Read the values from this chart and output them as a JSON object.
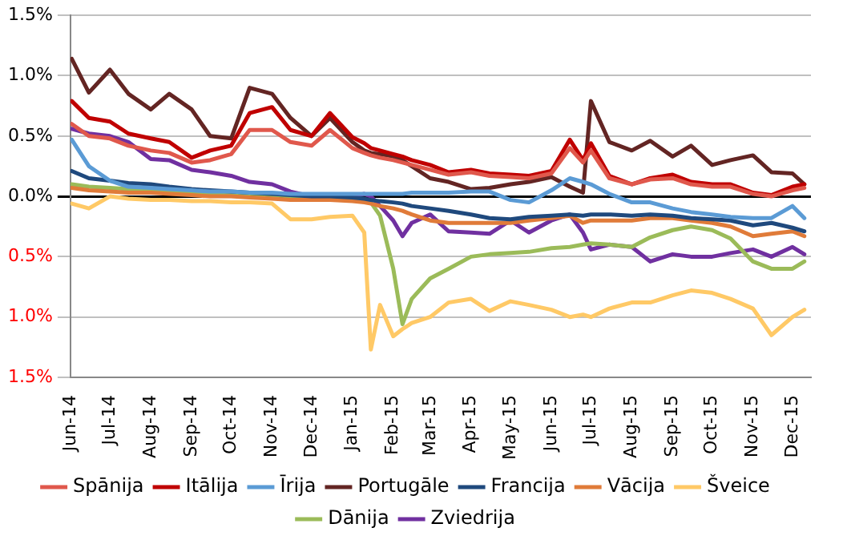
{
  "chart_data": {
    "type": "line",
    "x": [
      "2014-06-02",
      "2014-06-15",
      "2014-07-01",
      "2014-07-15",
      "2014-08-01",
      "2014-08-15",
      "2014-09-01",
      "2014-09-15",
      "2014-10-01",
      "2014-10-15",
      "2014-11-01",
      "2014-11-15",
      "2014-12-01",
      "2014-12-15",
      "2015-01-01",
      "2015-01-10",
      "2015-01-15",
      "2015-01-22",
      "2015-02-01",
      "2015-02-08",
      "2015-02-15",
      "2015-03-01",
      "2015-03-15",
      "2015-04-01",
      "2015-04-15",
      "2015-05-01",
      "2015-05-15",
      "2015-06-01",
      "2015-06-15",
      "2015-06-25",
      "2015-07-01",
      "2015-07-15",
      "2015-08-01",
      "2015-08-15",
      "2015-09-01",
      "2015-09-15",
      "2015-10-01",
      "2015-10-15",
      "2015-11-01",
      "2015-11-15",
      "2015-12-01",
      "2015-12-10"
    ],
    "series": [
      {
        "name": "Spānija",
        "color": "#e0584c",
        "values": [
          0.6,
          0.5,
          0.48,
          0.42,
          0.38,
          0.36,
          0.28,
          0.3,
          0.35,
          0.55,
          0.55,
          0.45,
          0.42,
          0.55,
          0.4,
          0.36,
          0.34,
          0.32,
          0.3,
          0.28,
          0.26,
          0.22,
          0.18,
          0.2,
          0.17,
          0.16,
          0.15,
          0.19,
          0.4,
          0.28,
          0.38,
          0.15,
          0.1,
          0.14,
          0.15,
          0.1,
          0.08,
          0.08,
          0.02,
          0.0,
          0.05,
          0.07
        ]
      },
      {
        "name": "Itālija",
        "color": "#c00000",
        "values": [
          0.79,
          0.65,
          0.62,
          0.52,
          0.48,
          0.45,
          0.32,
          0.38,
          0.42,
          0.69,
          0.74,
          0.55,
          0.5,
          0.69,
          0.49,
          0.44,
          0.4,
          0.38,
          0.35,
          0.33,
          0.3,
          0.26,
          0.2,
          0.22,
          0.19,
          0.18,
          0.17,
          0.21,
          0.47,
          0.3,
          0.44,
          0.17,
          0.1,
          0.15,
          0.18,
          0.12,
          0.1,
          0.1,
          0.03,
          0.01,
          0.08,
          0.1
        ]
      },
      {
        "name": "Īrija",
        "color": "#5b9bd5",
        "values": [
          0.47,
          0.25,
          0.13,
          0.08,
          0.07,
          0.06,
          0.05,
          0.04,
          0.04,
          0.03,
          0.03,
          0.02,
          0.02,
          0.02,
          0.02,
          0.02,
          0.02,
          0.02,
          0.02,
          0.02,
          0.03,
          0.03,
          0.03,
          0.04,
          0.04,
          -0.03,
          -0.05,
          0.05,
          0.15,
          0.12,
          0.1,
          0.02,
          -0.05,
          -0.05,
          -0.1,
          -0.13,
          -0.15,
          -0.17,
          -0.18,
          -0.18,
          -0.08,
          -0.18
        ]
      },
      {
        "name": "Portugāle",
        "color": "#632523",
        "values": [
          1.14,
          0.86,
          1.05,
          0.85,
          0.72,
          0.85,
          0.72,
          0.5,
          0.48,
          0.9,
          0.85,
          0.65,
          0.5,
          0.65,
          0.45,
          0.38,
          0.36,
          0.35,
          0.33,
          0.3,
          0.25,
          0.15,
          0.12,
          0.06,
          0.07,
          0.1,
          0.12,
          0.16,
          0.08,
          0.03,
          0.79,
          0.45,
          0.38,
          0.46,
          0.33,
          0.42,
          0.26,
          0.3,
          0.34,
          0.2,
          0.19,
          0.1
        ]
      },
      {
        "name": "Francija",
        "color": "#1f497d",
        "values": [
          0.21,
          0.15,
          0.13,
          0.11,
          0.1,
          0.08,
          0.06,
          0.05,
          0.04,
          0.03,
          0.02,
          0.01,
          0.0,
          0.0,
          -0.01,
          -0.02,
          -0.03,
          -0.04,
          -0.05,
          -0.06,
          -0.08,
          -0.1,
          -0.12,
          -0.15,
          -0.18,
          -0.19,
          -0.17,
          -0.16,
          -0.15,
          -0.16,
          -0.15,
          -0.15,
          -0.16,
          -0.15,
          -0.16,
          -0.18,
          -0.19,
          -0.2,
          -0.24,
          -0.22,
          -0.26,
          -0.29
        ]
      },
      {
        "name": "Vācija",
        "color": "#e07b39",
        "values": [
          0.07,
          0.05,
          0.04,
          0.03,
          0.03,
          0.02,
          0.01,
          0.0,
          0.0,
          -0.01,
          -0.02,
          -0.03,
          -0.03,
          -0.03,
          -0.04,
          -0.05,
          -0.06,
          -0.08,
          -0.1,
          -0.12,
          -0.15,
          -0.2,
          -0.22,
          -0.22,
          -0.22,
          -0.22,
          -0.2,
          -0.18,
          -0.16,
          -0.22,
          -0.2,
          -0.2,
          -0.2,
          -0.18,
          -0.18,
          -0.2,
          -0.22,
          -0.25,
          -0.33,
          -0.31,
          -0.29,
          -0.33
        ]
      },
      {
        "name": "Šveice",
        "color": "#ffc966",
        "values": [
          -0.06,
          -0.1,
          0.0,
          -0.02,
          -0.03,
          -0.03,
          -0.04,
          -0.04,
          -0.05,
          -0.05,
          -0.06,
          -0.19,
          -0.19,
          -0.17,
          -0.16,
          -0.3,
          -1.27,
          -0.9,
          -1.16,
          -1.1,
          -1.05,
          -1.0,
          -0.88,
          -0.85,
          -0.95,
          -0.87,
          -0.9,
          -0.94,
          -1.0,
          -0.98,
          -1.0,
          -0.93,
          -0.88,
          -0.88,
          -0.82,
          -0.78,
          -0.8,
          -0.85,
          -0.93,
          -1.15,
          -1.0,
          -0.94
        ]
      },
      {
        "name": "Dānija",
        "color": "#9bbb59",
        "values": [
          0.1,
          0.08,
          0.07,
          0.06,
          0.05,
          0.04,
          0.03,
          0.03,
          0.02,
          0.02,
          0.01,
          0.0,
          -0.01,
          -0.02,
          -0.02,
          -0.03,
          -0.05,
          -0.16,
          -0.6,
          -1.06,
          -0.85,
          -0.68,
          -0.6,
          -0.5,
          -0.48,
          -0.47,
          -0.46,
          -0.43,
          -0.42,
          -0.4,
          -0.39,
          -0.4,
          -0.42,
          -0.34,
          -0.28,
          -0.25,
          -0.28,
          -0.35,
          -0.54,
          -0.6,
          -0.6,
          -0.54
        ]
      },
      {
        "name": "Zviedrija",
        "color": "#7030a0",
        "values": [
          0.56,
          0.52,
          0.5,
          0.45,
          0.31,
          0.3,
          0.22,
          0.2,
          0.17,
          0.12,
          0.1,
          0.04,
          0.0,
          -0.02,
          0.0,
          0.02,
          0.0,
          -0.08,
          -0.2,
          -0.33,
          -0.22,
          -0.15,
          -0.29,
          -0.3,
          -0.31,
          -0.2,
          -0.3,
          -0.2,
          -0.15,
          -0.3,
          -0.44,
          -0.4,
          -0.42,
          -0.54,
          -0.48,
          -0.5,
          -0.5,
          -0.47,
          -0.44,
          -0.5,
          -0.42,
          -0.48
        ]
      }
    ],
    "xlim": [
      "2014-06-01",
      "2015-12-15"
    ],
    "xticks": [
      {
        "value": "2014-06-01",
        "label": "Jun-14"
      },
      {
        "value": "2014-07-01",
        "label": "Jul-14"
      },
      {
        "value": "2014-08-01",
        "label": "Aug-14"
      },
      {
        "value": "2014-09-01",
        "label": "Sep-14"
      },
      {
        "value": "2014-10-01",
        "label": "Oct-14"
      },
      {
        "value": "2014-11-01",
        "label": "Nov-14"
      },
      {
        "value": "2014-12-01",
        "label": "Dec-14"
      },
      {
        "value": "2015-01-01",
        "label": "Jan-15"
      },
      {
        "value": "2015-02-01",
        "label": "Feb-15"
      },
      {
        "value": "2015-03-01",
        "label": "Mar-15"
      },
      {
        "value": "2015-04-01",
        "label": "Apr-15"
      },
      {
        "value": "2015-05-01",
        "label": "May-15"
      },
      {
        "value": "2015-06-01",
        "label": "Jun-15"
      },
      {
        "value": "2015-07-01",
        "label": "Jul-15"
      },
      {
        "value": "2015-08-01",
        "label": "Aug-15"
      },
      {
        "value": "2015-09-01",
        "label": "Sep-15"
      },
      {
        "value": "2015-10-01",
        "label": "Oct-15"
      },
      {
        "value": "2015-11-01",
        "label": "Nov-15"
      },
      {
        "value": "2015-12-01",
        "label": "Dec-15"
      }
    ],
    "ylim": [
      -1.5,
      1.5
    ],
    "yticks": [
      {
        "value": -1.5,
        "label": "1.5%"
      },
      {
        "value": -1.0,
        "label": "1.0%"
      },
      {
        "value": -0.5,
        "label": "0.5%"
      },
      {
        "value": 0,
        "label": "0.0%"
      },
      {
        "value": 0.5,
        "label": "0.5%"
      },
      {
        "value": 1.0,
        "label": "1.0%"
      },
      {
        "value": 1.5,
        "label": "1.5%"
      }
    ],
    "grid": "y",
    "legend": "bottom",
    "marker": "none",
    "line_style": "solid"
  }
}
